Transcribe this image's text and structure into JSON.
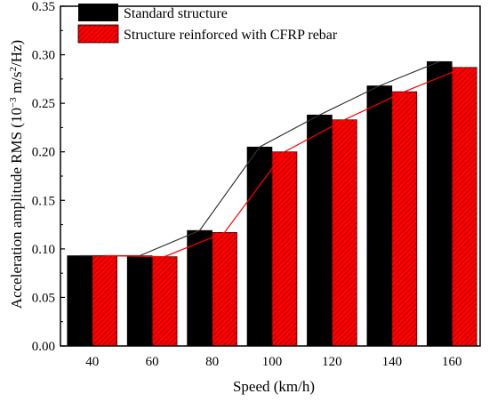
{
  "chart_data": {
    "type": "bar",
    "xlabel": "Speed (km/h)",
    "ylabel_main": "Acceleration amplitude RMS (10",
    "ylabel_exp1": "−3",
    "ylabel_mid": " m/s",
    "ylabel_exp2": "2",
    "ylabel_tail": "/Hz)",
    "categories": [
      "40",
      "60",
      "80",
      "100",
      "120",
      "140",
      "160"
    ],
    "ylim": [
      0,
      0.35
    ],
    "yticks": [
      "0.00",
      "0.05",
      "0.10",
      "0.15",
      "0.20",
      "0.25",
      "0.30",
      "0.35"
    ],
    "legend_position": "top-left",
    "series": [
      {
        "name": "Standard structure",
        "color": "#000000",
        "pattern": "solid",
        "values": [
          0.093,
          0.093,
          0.119,
          0.205,
          0.238,
          0.268,
          0.293
        ]
      },
      {
        "name": "Structure reinforced with CFRP rebar",
        "color": "#ff0000",
        "pattern": "hatched",
        "values": [
          0.093,
          0.092,
          0.117,
          0.2,
          0.233,
          0.262,
          0.287
        ]
      }
    ]
  }
}
